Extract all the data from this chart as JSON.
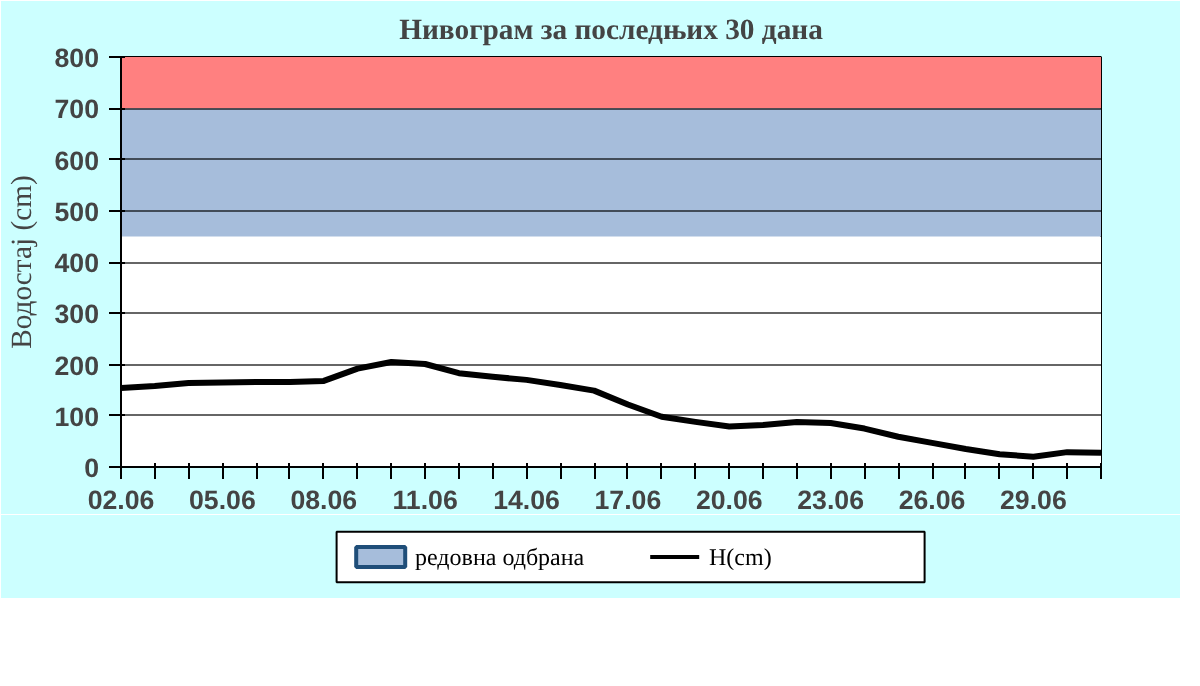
{
  "chart_data": {
    "type": "line",
    "title": "Нивограм за последњих 30 дана",
    "ylabel": "Водостај (cm)",
    "categories": [
      "02.06",
      null,
      null,
      "05.06",
      null,
      null,
      "08.06",
      null,
      null,
      "11.06",
      null,
      null,
      "14.06",
      null,
      null,
      "17.06",
      null,
      null,
      "20.06",
      null,
      null,
      "23.06",
      null,
      null,
      "26.06",
      null,
      null,
      "29.06",
      null,
      null
    ],
    "series": [
      {
        "name": "H(cm)",
        "color": "#000000",
        "values": [
          154,
          158,
          164,
          165,
          166,
          166,
          168,
          192,
          205,
          201,
          183,
          176,
          170,
          160,
          149,
          122,
          98,
          88,
          79,
          82,
          88,
          86,
          75,
          59,
          47,
          35,
          25,
          20,
          29,
          28
        ]
      }
    ],
    "bands": [
      {
        "axis": "y",
        "from": 0,
        "to": 450,
        "color": "#ffffff"
      },
      {
        "axis": "y",
        "from": 450,
        "to": 700,
        "label": "редовна одбрана",
        "color": "#a6bddb"
      },
      {
        "axis": "y",
        "from": 700,
        "to": 800,
        "color": "#ff8080"
      }
    ],
    "ylim": [
      0,
      800
    ],
    "yticks": [
      0,
      100,
      200,
      300,
      400,
      500,
      600,
      700,
      800
    ],
    "grid": "y",
    "legend": "bottom",
    "marker": "none",
    "line_style": "solid"
  }
}
